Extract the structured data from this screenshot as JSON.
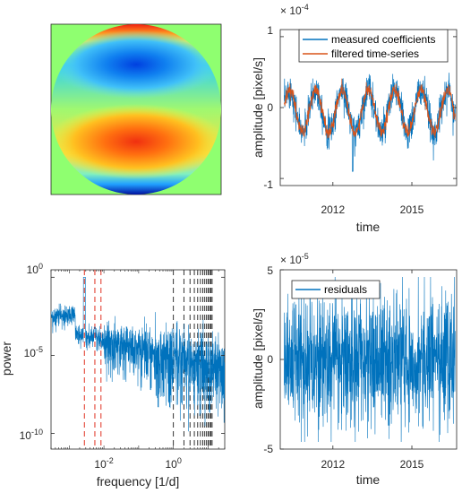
{
  "chart_data": [
    {
      "type": "heatmap",
      "description_shown": "disk-shaped colormap pattern: blue lobe in upper half, red lobe in lower half, green background",
      "colors": {
        "background": "#8fff70",
        "low": "#0020c8",
        "high": "#e03010"
      }
    },
    {
      "type": "line",
      "xlabel": "time",
      "ylabel": "amplitude [pixel/s]",
      "exponent": "× 10",
      "exponent_power": "-4",
      "ylim": [
        -1.1,
        1.1
      ],
      "yticks": [
        -1,
        0,
        1
      ],
      "ytick_labels": [
        "-1",
        "0",
        "1"
      ],
      "xlim": [
        2010.0,
        2016.7
      ],
      "xticks": [
        2012,
        2015
      ],
      "xtick_labels": [
        "2012",
        "2015"
      ],
      "series": [
        {
          "name": "measured coefficients",
          "color": "#0072bd",
          "envelope_center_amp": 0.3,
          "noise": 0.12,
          "period_years": 1.0,
          "offset": -0.05
        },
        {
          "name": "filtered time-series",
          "color": "#d95319",
          "envelope_center_amp": 0.3,
          "noise": 0.05,
          "period_years": 1.0,
          "offset": -0.05
        }
      ],
      "legend": "top-right"
    },
    {
      "type": "line",
      "xlabel": "frequency [1/d]",
      "ylabel": "power",
      "xscale": "log",
      "yscale": "log",
      "xlim": [
        0.0003,
        30
      ],
      "ylim": [
        1e-11,
        3
      ],
      "xtick_labels": [
        "10⁻²",
        "10⁰"
      ],
      "xtick_values": [
        0.01,
        1
      ],
      "ytick_labels": [
        "10⁰",
        "10⁻⁵",
        "10⁻¹⁰"
      ],
      "ytick_values": [
        1,
        1e-05,
        1e-10
      ],
      "series": [
        {
          "name": "",
          "color": "#0072bd"
        }
      ],
      "red_dashed_lines_freq": [
        0.00274,
        0.00548,
        0.00822
      ],
      "black_dashed_lines_freq": [
        1,
        2,
        3,
        4,
        5,
        6,
        7,
        8,
        9,
        10,
        11,
        12,
        13
      ]
    },
    {
      "type": "line",
      "xlabel": "time",
      "ylabel": "amplitude [pixel/s]",
      "exponent": "× 10",
      "exponent_power": "-5",
      "ylim": [
        -5,
        5
      ],
      "yticks": [
        -5,
        0,
        5
      ],
      "ytick_labels": [
        "-5",
        "0",
        "5"
      ],
      "xlim": [
        2010.0,
        2016.7
      ],
      "xticks": [
        2012,
        2015
      ],
      "xtick_labels": [
        "2012",
        "2015"
      ],
      "series": [
        {
          "name": "residuals",
          "color": "#0072bd",
          "noise": 1.8
        }
      ],
      "legend": "top-left"
    }
  ],
  "panels": {
    "tr": {
      "exp": "× 10",
      "exp_pow": "-4",
      "xlabel": "time",
      "ylabel": "amplitude [pixel/s]",
      "legend1": "measured coefficients",
      "legend2": "filtered time-series",
      "y1": "1",
      "y0": "0",
      "ym1": "-1",
      "x1": "2012",
      "x2": "2015"
    },
    "bl": {
      "xlabel": "frequency [1/d]",
      "ylabel": "power",
      "xt1": "10",
      "xt1p": "-2",
      "xt2": "10",
      "xt2p": "0",
      "yt1": "10",
      "yt1p": "0",
      "yt2": "10",
      "yt2p": "-5",
      "yt3": "10",
      "yt3p": "-10"
    },
    "br": {
      "exp": "× 10",
      "exp_pow": "-5",
      "xlabel": "time",
      "ylabel": "amplitude [pixel/s]",
      "legend1": "residuals",
      "y5": "5",
      "y0": "0",
      "ym5": "-5",
      "x1": "2012",
      "x2": "2015"
    }
  }
}
